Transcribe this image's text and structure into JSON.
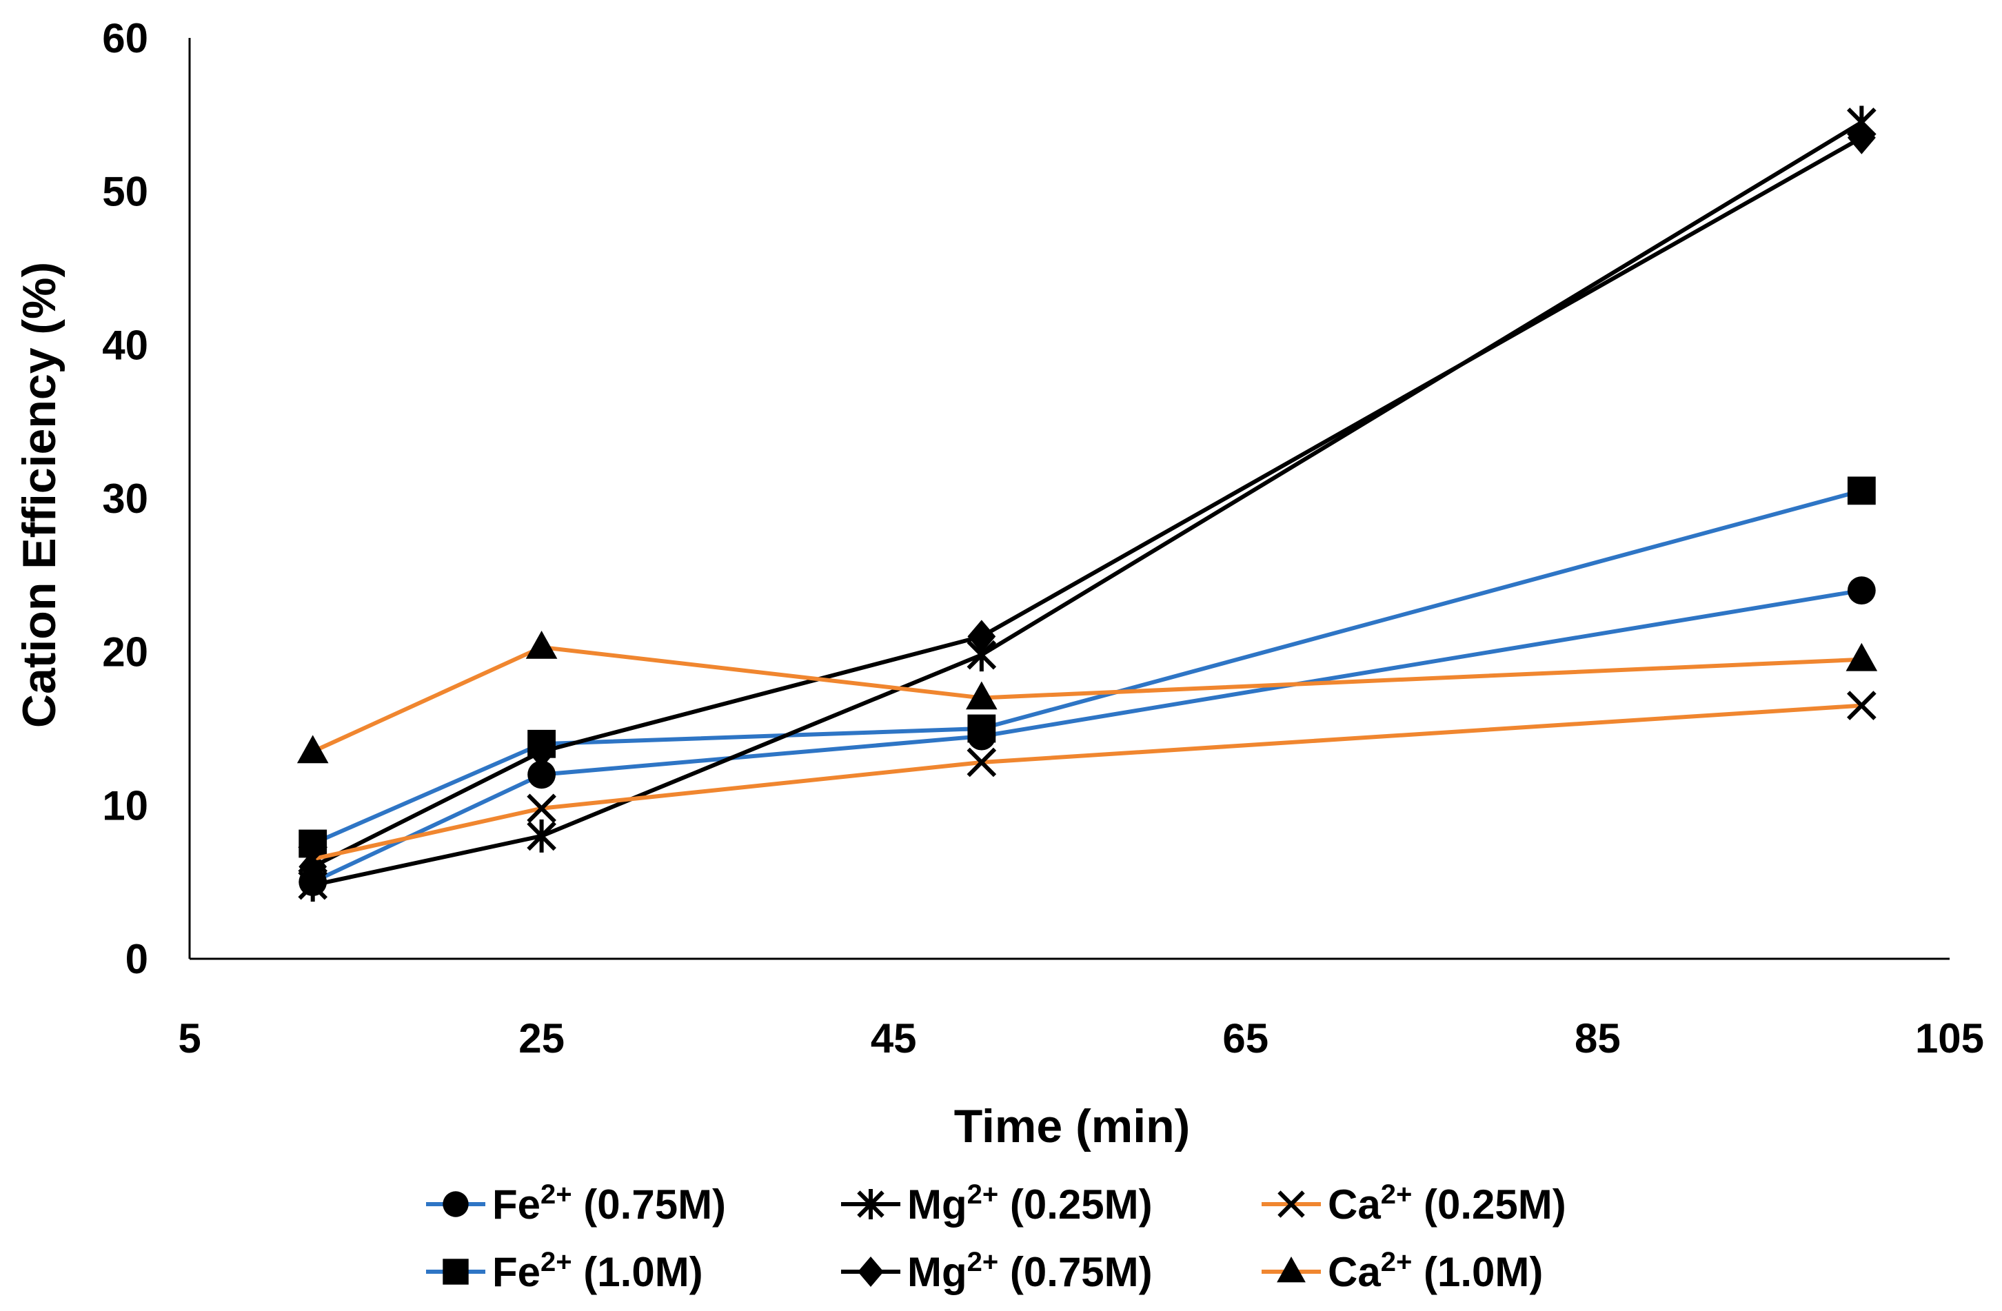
{
  "chart_data": {
    "type": "line",
    "title": "",
    "xlabel": "Time (min)",
    "ylabel": "Cation Efficiency (%)",
    "xlim": [
      5,
      105
    ],
    "ylim": [
      0,
      60
    ],
    "xticks": [
      5,
      25,
      45,
      65,
      85,
      105
    ],
    "yticks": [
      0,
      10,
      20,
      30,
      40,
      50,
      60
    ],
    "grid": false,
    "legend_position": "bottom",
    "x": [
      12,
      25,
      50,
      100
    ],
    "series": [
      {
        "name": "Fe²⁺ (0.75M)",
        "ion": "Fe",
        "charge": "2+",
        "conc": "(0.75M)",
        "color": "#2e75c5",
        "marker": "circle",
        "values": [
          5.0,
          12.0,
          14.5,
          24.0
        ]
      },
      {
        "name": "Fe²⁺ (1.0M)",
        "ion": "Fe",
        "charge": "2+",
        "conc": "(1.0M)",
        "color": "#2e75c5",
        "marker": "square",
        "values": [
          7.5,
          14.0,
          15.0,
          30.5
        ]
      },
      {
        "name": "Mg²⁺ (0.25M)",
        "ion": "Mg",
        "charge": "2+",
        "conc": "(0.25M)",
        "color": "#000000",
        "marker": "asterisk",
        "values": [
          4.8,
          8.0,
          19.8,
          54.5
        ]
      },
      {
        "name": "Mg²⁺ (0.75M)",
        "ion": "Mg",
        "charge": "2+",
        "conc": "(0.75M)",
        "color": "#000000",
        "marker": "diamond",
        "values": [
          6.0,
          13.5,
          21.0,
          53.5
        ]
      },
      {
        "name": "Ca²⁺ (0.25M)",
        "ion": "Ca",
        "charge": "2+",
        "conc": "(0.25M)",
        "color": "#f0862f",
        "marker": "x",
        "values": [
          6.5,
          9.8,
          12.8,
          16.5
        ]
      },
      {
        "name": "Ca²⁺ (1.0M)",
        "ion": "Ca",
        "charge": "2+",
        "conc": "(1.0M)",
        "color": "#f0862f",
        "marker": "triangle",
        "values": [
          13.5,
          20.3,
          17.0,
          19.5
        ]
      }
    ]
  }
}
